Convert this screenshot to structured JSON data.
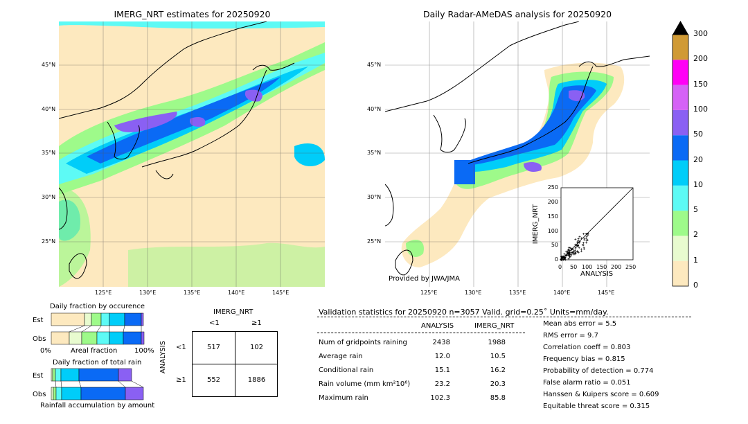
{
  "colors": {
    "land": "#fde9bf",
    "c0": "#fde9bf",
    "c1": "#e8fbcf",
    "c2": "#9efa8a",
    "c5": "#5dfaf5",
    "c10": "#00cdf9",
    "c20": "#0a6af5",
    "c50": "#8a60f3",
    "c100": "#d562f6",
    "c150": "#ff00f6",
    "c200": "#d09a35",
    "c300": "#000000"
  },
  "map_left": {
    "title": "IMERG_NRT estimates for 20250920",
    "lat_labels": [
      "45°N",
      "40°N",
      "35°N",
      "30°N",
      "25°N"
    ],
    "lon_labels": [
      "125°E",
      "130°E",
      "135°E",
      "140°E",
      "145°E"
    ]
  },
  "map_right": {
    "title": "Daily Radar-AMeDAS analysis for 20250920",
    "lat_labels": [
      "45°N",
      "40°N",
      "35°N",
      "30°N",
      "25°N"
    ],
    "lon_labels": [
      "125°E",
      "130°E",
      "135°E",
      "140°E",
      "145°E"
    ],
    "credit": "Provided by JWA/JMA"
  },
  "colorbar": {
    "labels": [
      "0",
      "1",
      "2",
      "5",
      "10",
      "20",
      "50",
      "100",
      "150",
      "200",
      "300"
    ]
  },
  "scatter": {
    "xlabel": "ANALYSIS",
    "ylabel": "IMERG_NRT",
    "ticks": [
      "0",
      "50",
      "100",
      "150",
      "200",
      "250"
    ]
  },
  "occurrence": {
    "title": "Daily fraction by occurence",
    "rows": [
      "Est",
      "Obs"
    ],
    "axis_left": "0%",
    "axis_mid": "Areal fraction",
    "axis_right": "100%"
  },
  "totalrain": {
    "title": "Daily fraction of total rain",
    "rows": [
      "Est",
      "Obs"
    ],
    "footer": "Rainfall accumulation by amount"
  },
  "contingency": {
    "col_title": "IMERG_NRT",
    "col_labels": [
      "<1",
      "≥1"
    ],
    "row_title": "ANALYSIS",
    "row_labels": [
      "<1",
      "≥1"
    ],
    "cells": [
      [
        "517",
        "102"
      ],
      [
        "552",
        "1886"
      ]
    ]
  },
  "validation": {
    "header": "Validation statistics for 20250920  n=3057 Valid. grid=0.25˚ Units=mm/day.",
    "col_analysis": "ANALYSIS",
    "col_imerg": "IMERG_NRT",
    "rows": [
      {
        "label": "Num of gridpoints raining",
        "analysis": "2438",
        "imerg": "1988"
      },
      {
        "label": "Average rain",
        "analysis": "12.0",
        "imerg": "10.5"
      },
      {
        "label": "Conditional rain",
        "analysis": "15.1",
        "imerg": "16.2"
      },
      {
        "label": "Rain volume (mm km²10⁶)",
        "analysis": "23.2",
        "imerg": "20.3"
      },
      {
        "label": "Maximum rain",
        "analysis": "102.3",
        "imerg": "85.8"
      }
    ],
    "scores": [
      "Mean abs error =    5.5",
      "RMS error =    9.7",
      "Correlation coeff =  0.803",
      "Frequency bias =  0.815",
      "Probability of detection =  0.774",
      "False alarm ratio =  0.051",
      "Hanssen & Kuipers score =  0.609",
      "Equitable threat score =  0.315"
    ]
  }
}
